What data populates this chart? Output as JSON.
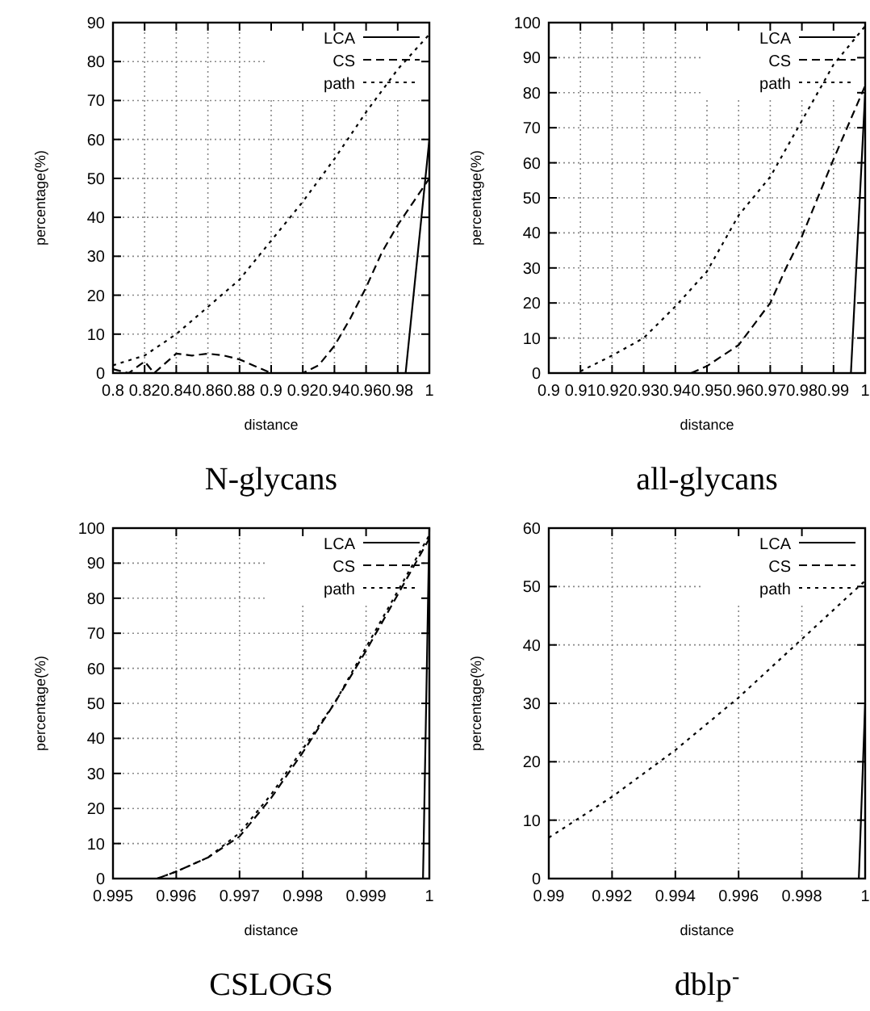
{
  "chart_data": [
    {
      "type": "line",
      "title": "N-glycans",
      "xlabel": "distance",
      "ylabel": "percentage(%)",
      "xlim": [
        0.8,
        1
      ],
      "xticks": [
        0.8,
        0.82,
        0.84,
        0.86,
        0.88,
        0.9,
        0.92,
        0.94,
        0.96,
        0.98,
        1
      ],
      "ylim": [
        0,
        90
      ],
      "yticks": [
        0,
        10,
        20,
        30,
        40,
        50,
        60,
        70,
        80,
        90
      ],
      "grid": true,
      "legend": "top right",
      "series": [
        {
          "name": "LCA",
          "color": "#000000",
          "line_style": "solid",
          "x": [
            0.8,
            0.985,
            1
          ],
          "values": [
            0,
            0,
            60
          ]
        },
        {
          "name": "CS",
          "color": "#000000",
          "line_style": "dashed",
          "x": [
            0.8,
            0.81,
            0.82,
            0.826,
            0.84,
            0.85,
            0.86,
            0.87,
            0.88,
            0.9,
            0.92,
            0.93,
            0.94,
            0.95,
            0.96,
            0.97,
            0.98,
            0.99,
            1
          ],
          "values": [
            1,
            0,
            3,
            0,
            5,
            4.5,
            5,
            4.5,
            3.5,
            0,
            0,
            2,
            7,
            14,
            22,
            31,
            38,
            44,
            50
          ]
        },
        {
          "name": "path",
          "color": "#000000",
          "line_style": "dotted",
          "x": [
            0.8,
            0.82,
            0.84,
            0.86,
            0.88,
            0.9,
            0.92,
            0.94,
            0.96,
            0.98,
            1
          ],
          "values": [
            2,
            4.5,
            10,
            17,
            24,
            34,
            44,
            55,
            67,
            78,
            87
          ]
        }
      ]
    },
    {
      "type": "line",
      "title": "all-glycans",
      "xlabel": "distance",
      "ylabel": "percentage(%)",
      "xlim": [
        0.9,
        1
      ],
      "xticks": [
        0.9,
        0.91,
        0.92,
        0.93,
        0.94,
        0.95,
        0.96,
        0.97,
        0.98,
        0.99,
        1
      ],
      "ylim": [
        0,
        100
      ],
      "yticks": [
        0,
        10,
        20,
        30,
        40,
        50,
        60,
        70,
        80,
        90,
        100
      ],
      "grid": true,
      "legend": "top right",
      "series": [
        {
          "name": "LCA",
          "color": "#000000",
          "line_style": "solid",
          "x": [
            0.9,
            0.9955,
            1
          ],
          "values": [
            0,
            0,
            80
          ]
        },
        {
          "name": "CS",
          "color": "#000000",
          "line_style": "dashed",
          "x": [
            0.945,
            0.95,
            0.96,
            0.97,
            0.975,
            0.98,
            0.99,
            1
          ],
          "values": [
            0,
            2,
            8,
            20,
            30,
            39,
            61,
            82
          ]
        },
        {
          "name": "path",
          "color": "#000000",
          "line_style": "dotted",
          "x": [
            0.91,
            0.92,
            0.93,
            0.94,
            0.95,
            0.96,
            0.97,
            0.98,
            0.99,
            1
          ],
          "values": [
            0.5,
            5,
            10,
            19,
            29,
            45,
            56,
            72,
            88,
            99
          ]
        }
      ]
    },
    {
      "type": "line",
      "title": "CSLOGS",
      "xlabel": "distance",
      "ylabel": "percentage(%)",
      "xlim": [
        0.995,
        1
      ],
      "xticks": [
        0.995,
        0.996,
        0.997,
        0.998,
        0.999,
        1
      ],
      "ylim": [
        0,
        100
      ],
      "yticks": [
        0,
        10,
        20,
        30,
        40,
        50,
        60,
        70,
        80,
        90,
        100
      ],
      "grid": true,
      "legend": "top right",
      "series": [
        {
          "name": "LCA",
          "color": "#000000",
          "line_style": "solid",
          "x": [
            0.995,
            0.9999,
            1
          ],
          "values": [
            0,
            0,
            100
          ]
        },
        {
          "name": "CS",
          "color": "#000000",
          "line_style": "dashed",
          "x": [
            0.9957,
            0.996,
            0.9965,
            0.997,
            0.9975,
            0.998,
            0.9985,
            0.999,
            0.9995,
            1
          ],
          "values": [
            0,
            2,
            6,
            12,
            23,
            36,
            50,
            65,
            81,
            97
          ]
        },
        {
          "name": "path",
          "color": "#000000",
          "line_style": "dotted",
          "x": [
            0.9957,
            0.996,
            0.9965,
            0.997,
            0.9975,
            0.998,
            0.9985,
            0.999,
            0.9995,
            1
          ],
          "values": [
            0,
            2,
            6,
            13,
            24,
            37,
            50,
            66,
            82,
            98
          ]
        }
      ]
    },
    {
      "type": "line",
      "title": "dblp$^{-}$",
      "xlabel": "distance",
      "ylabel": "percentage(%)",
      "xlim": [
        0.99,
        1
      ],
      "xticks": [
        0.99,
        0.992,
        0.994,
        0.996,
        0.998,
        1
      ],
      "ylim": [
        0,
        60
      ],
      "yticks": [
        0,
        10,
        20,
        30,
        40,
        50,
        60
      ],
      "grid": true,
      "legend": "top right",
      "series": [
        {
          "name": "LCA",
          "color": "#000000",
          "line_style": "solid",
          "x": [
            0.99,
            0.9998,
            1
          ],
          "values": [
            0,
            0,
            30
          ]
        },
        {
          "name": "CS",
          "color": "#000000",
          "line_style": "dashed"
        },
        {
          "name": "path",
          "color": "#000000",
          "line_style": "dotted",
          "x": [
            0.99,
            0.992,
            0.994,
            0.996,
            0.998,
            1
          ],
          "values": [
            7,
            14,
            22,
            31,
            41,
            51
          ]
        }
      ]
    }
  ]
}
